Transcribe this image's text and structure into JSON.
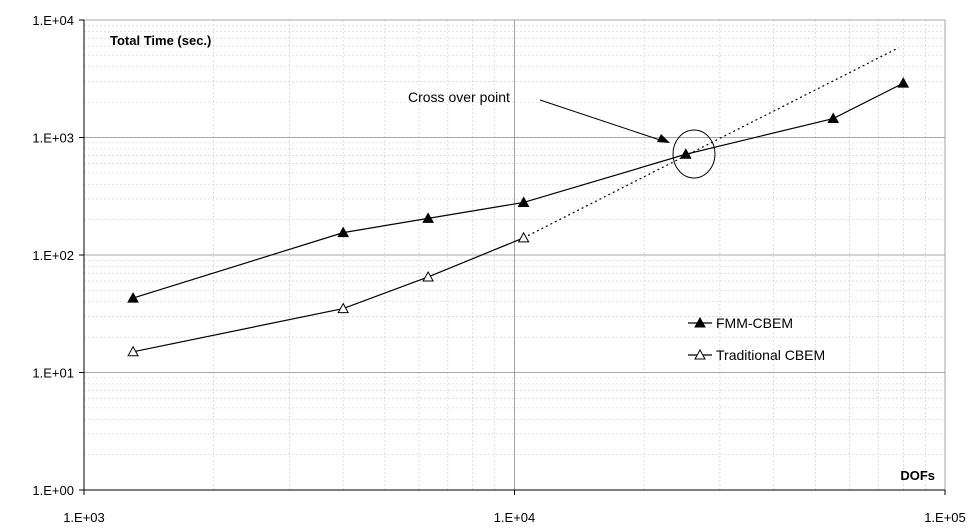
{
  "chart_data": {
    "type": "line",
    "xscale": "log",
    "yscale": "log",
    "xlim": [
      1000,
      100000
    ],
    "ylim": [
      1,
      10000
    ],
    "x_ticks": [
      "1.E+03",
      "1.E+04",
      "1.E+05"
    ],
    "y_ticks": [
      "1.E+00",
      "1.E+01",
      "1.E+02",
      "1.E+03",
      "1.E+04"
    ],
    "ylabel": "Total Time (sec.)",
    "xlabel": "DOFs",
    "grid": true,
    "legend_position": "right-middle",
    "series": [
      {
        "name": "FMM-CBEM",
        "marker": "filled-triangle",
        "color": "#000000",
        "points": [
          [
            1300,
            43
          ],
          [
            4000,
            155
          ],
          [
            6300,
            205
          ],
          [
            10500,
            280
          ],
          [
            25000,
            720
          ],
          [
            55000,
            1450
          ],
          [
            80000,
            2900
          ]
        ]
      },
      {
        "name": "Traditional CBEM",
        "marker": "open-triangle",
        "color": "#000000",
        "points": [
          [
            1300,
            15
          ],
          [
            4000,
            35
          ],
          [
            6300,
            65
          ],
          [
            10500,
            140
          ]
        ],
        "extrapolation": [
          [
            10500,
            140
          ],
          [
            78000,
            5800
          ]
        ]
      }
    ],
    "annotations": [
      {
        "text": "Cross over point",
        "target": [
          27000,
          780
        ]
      }
    ]
  }
}
